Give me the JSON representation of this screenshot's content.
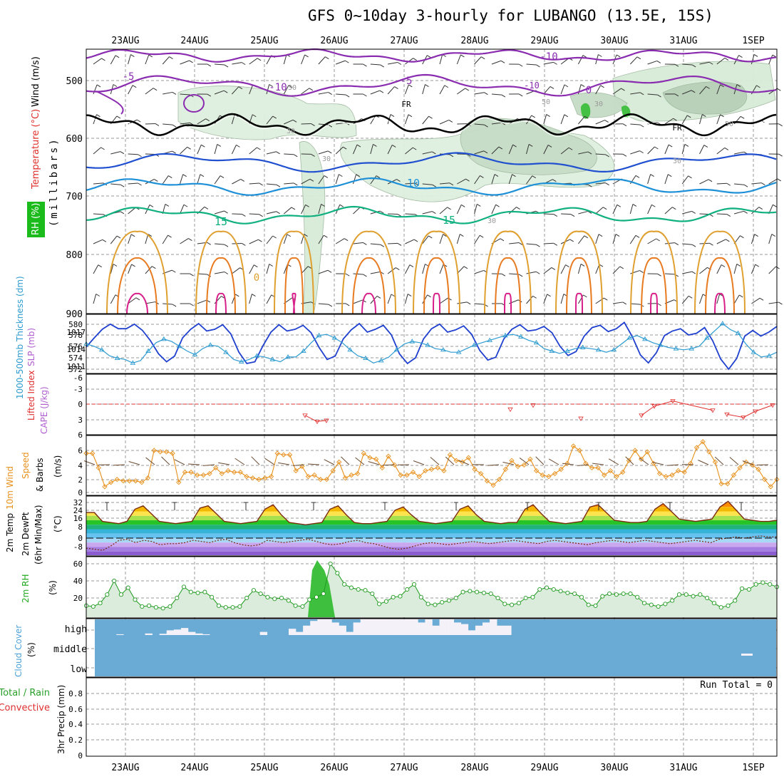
{
  "title": "GFS 0~10day 3-hourly for LUBANGO (13.5E, 15S)",
  "colors": {
    "temperature_label": "#e0302c",
    "rh_label": "#22aa22",
    "wind_label": "#000000",
    "thickness_line": "#2d9bd0",
    "slp_line": "#2040d0",
    "lifted_index": "#e03030",
    "cape": "#b060d0",
    "wind_speed": "#e8901a",
    "rh2m": "#1e9a1e",
    "cloud": "#6aabd6",
    "precip_total": "#2aa02a",
    "precip_conv": "#e03030"
  },
  "time_axis": {
    "dates": [
      "23AUG",
      "24AUG",
      "25AUG",
      "26AUG",
      "27AUG",
      "28AUG",
      "29AUG",
      "30AUG",
      "31AUG",
      "1SEP"
    ]
  },
  "panels": {
    "upper_air": {
      "ylabel_rh": "RH (%)",
      "ylabel_temperature": "Temperature (°C)",
      "ylabel_wind": "Wind (m/s)",
      "ylabel_pressure": "(millibars)",
      "yticks": [
        "500",
        "600",
        "700",
        "800",
        "900"
      ],
      "contour_labels": [
        "-10",
        "-5",
        "-10",
        "-5",
        "-10",
        "0",
        "FR",
        "FR",
        "10",
        "10",
        "15",
        "15",
        "0",
        "30",
        "30",
        "30",
        "30",
        "30",
        "50",
        "50",
        "30"
      ]
    },
    "thickness_slp": {
      "ylabel_thickness": "1000-500mb Thickness (dm)",
      "ylabel_slp": "SLP (mb)",
      "yticks_left": [
        "580",
        "578",
        "576",
        "574",
        "572"
      ],
      "yticks_right": [
        "1017",
        "1014",
        "1011"
      ]
    },
    "li_cape": {
      "ylabel_li": "Lifted Index",
      "ylabel_cape": "CAPE (J/kg)",
      "yticks": [
        "-6",
        "-3",
        "0",
        "3",
        "6"
      ]
    },
    "wind10m": {
      "ylabel_a": "10m Wind",
      "ylabel_b": "Speed",
      "ylabel_c": "& Barbs",
      "ylabel_units": "(m/s)",
      "yticks": [
        "6",
        "4",
        "2",
        "0"
      ]
    },
    "temp2m": {
      "ylabel_a": "2m Temp",
      "ylabel_b": "2m DewPt",
      "ylabel_c": "(6hr Min/Max)",
      "ylabel_units": "(°C)",
      "yticks": [
        "32",
        "24",
        "16",
        "8",
        "0",
        "-8"
      ]
    },
    "rh2m": {
      "ylabel": "2m RH",
      "ylabel_units": "(%)",
      "yticks": [
        "60",
        "40",
        "20"
      ]
    },
    "cloud": {
      "ylabel": "Cloud Cover",
      "ylabel_units": "(%)",
      "levels": [
        "high",
        "middle",
        "low"
      ]
    },
    "precip": {
      "ylabel_a": "Total / Rain",
      "ylabel_b": "Convective",
      "ylabel_c": "3hr Precip (mm)",
      "run_total": "Run Total = 0",
      "yticks": [
        "0.8",
        "0.6",
        "0.4",
        "0.2",
        "0"
      ]
    }
  },
  "chart_data": [
    {
      "type": "line",
      "title": "1000-500mb Thickness (dm) & SLP (mb)",
      "series": [
        {
          "name": "SLP (mb)",
          "values": [
            1014.4,
            1016,
            1017.5,
            1018.4,
            1017.6,
            1017.6,
            1018.4,
            1017.3,
            1015.5,
            1013.2,
            1011.8,
            1012.8,
            1016,
            1017.5,
            1018.5,
            1017.2,
            1017.5,
            1018.3,
            1016.7,
            1013.5,
            1011.5,
            1011.8,
            1014.6,
            1017,
            1018.3,
            1017.2,
            1017.5,
            1018.2,
            1016.9,
            1014.3,
            1012.2,
            1012.8,
            1015.8,
            1017.4,
            1018.5,
            1017,
            1017.5,
            1018.2,
            1016.5,
            1013.2,
            1011.5,
            1012.5,
            1015.8,
            1017.6,
            1018.4,
            1017,
            1017.4,
            1018.1,
            1016.6,
            1013.8,
            1012.1,
            1012.6,
            1015.8,
            1017.5,
            1018.3,
            1017.2,
            1017.4,
            1018,
            1016.9,
            1014.5,
            1012.9,
            1013.6,
            1016.3,
            1017.8,
            1018.2,
            1017.1,
            1017.6,
            1018.7,
            1016.2,
            1013,
            1011.6,
            1013.4,
            1016.4,
            1017.2,
            1017.6,
            1016.5,
            1016.8,
            1017.8,
            1015.5,
            1012.3,
            1010.5,
            1012.4,
            1016.3,
            1017.3,
            1016.3,
            1017,
            1018
          ]
        },
        {
          "name": "Thickness (dm)",
          "values": [
            576.6,
            576.2,
            575.6,
            574.6,
            574.2,
            574,
            573.4,
            573.8,
            575.4,
            576.8,
            577.4,
            577,
            576.2,
            575.4,
            574.8,
            575.8,
            576.4,
            576.2,
            575.2,
            574,
            573.6,
            574,
            574.6,
            574.4,
            574,
            573.6,
            574.4,
            574.4,
            575.4,
            576.8,
            578,
            578.2,
            577.6,
            576.8,
            575.6,
            574.6,
            574.2,
            573.4,
            573.8,
            574.4,
            575.6,
            576.6,
            577,
            576.8,
            576.4,
            575.8,
            575.6,
            575.2,
            575.2,
            575.8,
            576.4,
            576.8,
            577.2,
            577.6,
            578,
            578.2,
            577.8,
            577.2,
            576.8,
            575.8,
            575.4,
            575,
            575.4,
            575.8,
            576,
            575.8,
            575.6,
            575.2,
            575.6,
            576.6,
            577.6,
            578,
            577.4,
            576.8,
            576.4,
            576,
            575.8,
            575.6,
            575.8,
            576.2,
            577.6,
            578.8,
            580,
            579,
            578.4,
            576.6,
            575.2,
            574.4,
            574.6,
            575.2
          ]
        }
      ]
    },
    {
      "type": "line",
      "title": "Lifted Index",
      "series": [
        {
          "name": "Lifted Index",
          "values": [
            2.2,
            3.4,
            3.2,
            1,
            0.2,
            2.8,
            2.2,
            0.4,
            -0.6,
            1.2,
            2,
            2.6,
            1.4,
            0.2
          ]
        }
      ]
    },
    {
      "type": "line",
      "title": "10m Wind Speed (m/s)",
      "series": [
        {
          "name": "Speed",
          "values": [
            5.6,
            5.6,
            3.6,
            1,
            1.6,
            2,
            1.8,
            1.8,
            1.8,
            1.6,
            2.2,
            6,
            5.8,
            5.8,
            5.6,
            1.6,
            3,
            3,
            2.6,
            2.6,
            2.8,
            3.6,
            2.8,
            3.2,
            3,
            3,
            2.4,
            2.2,
            2,
            2.2,
            2.4,
            5.6,
            5.4,
            5.4,
            3.2,
            3.8,
            2.4,
            2.6,
            2,
            2,
            3.2,
            4.4,
            2.2,
            2.6,
            2.8,
            5.6,
            5,
            4.8,
            3.6,
            5.2,
            4,
            2.6,
            2.6,
            3,
            2.4,
            3.2,
            3.4,
            3.6,
            3.2,
            5.4,
            4.6,
            4.4,
            5,
            3.4,
            2.8,
            1.8,
            1.2,
            2,
            3.4,
            4.6,
            3.8,
            4,
            4.8,
            3.2,
            2.6,
            2.4,
            2.8,
            3.4,
            4.2,
            6.6,
            6,
            4.2,
            3.6,
            3.6,
            2.6,
            3.2,
            2.4,
            3,
            4.6,
            6,
            4.8,
            5.8,
            4.2,
            2.8,
            2.4,
            2.6,
            3.2,
            3,
            4.2,
            6.4,
            7.2,
            5.8,
            4.4,
            1.4,
            1.4,
            2.6,
            3.6,
            4.4,
            4,
            3.4,
            2,
            1,
            2
          ]
        }
      ]
    },
    {
      "type": "area",
      "title": "2m Temp / 2m DewPt (°C)",
      "series": [
        {
          "name": "2m Temp",
          "values": [
            23,
            23,
            15,
            14,
            13,
            15,
            26,
            29,
            22,
            15,
            14,
            13,
            14,
            15,
            27,
            29,
            22,
            15,
            14,
            13,
            14,
            15,
            26,
            30,
            21,
            14,
            13,
            12,
            13,
            14,
            26,
            29,
            21,
            14,
            13,
            13,
            14,
            15,
            25,
            28,
            21,
            15,
            14,
            13,
            14,
            15,
            26,
            29,
            21,
            15,
            14,
            13,
            14,
            14,
            26,
            30,
            22,
            15,
            14,
            13,
            14,
            15,
            28,
            30,
            23,
            16,
            15,
            14,
            14,
            15,
            26,
            31,
            24,
            17,
            16,
            15,
            16,
            17,
            28,
            33,
            25,
            17,
            16,
            15,
            15,
            16
          ]
        },
        {
          "name": "2m DewPt",
          "values": [
            -9,
            -10,
            -11,
            -7,
            -2,
            -1,
            -4,
            -2,
            -3,
            -6,
            -5,
            -5,
            -4,
            -2,
            -3,
            -4,
            -2,
            -1,
            -4,
            -6,
            -7,
            -6,
            -2,
            -3,
            -4,
            -3,
            -2,
            -1,
            -3,
            -5,
            -6,
            -5,
            -3,
            -2,
            -4,
            -5,
            -7,
            -9,
            -10,
            -9,
            -7,
            -5,
            -4,
            -5,
            -6,
            -5,
            -4,
            -3,
            -4,
            -5,
            -4,
            -3,
            -2,
            -3,
            -4,
            -5,
            -3,
            -2,
            -3,
            -4,
            -5,
            -6,
            -4,
            -3,
            -2,
            -3,
            -4,
            -3,
            -2,
            -3,
            -4,
            -5,
            -4,
            -3,
            -2,
            -3,
            -4,
            -1,
            0,
            1,
            0,
            1,
            2,
            1,
            1
          ]
        }
      ]
    },
    {
      "type": "area",
      "title": "2m RH (%)",
      "series": [
        {
          "name": "2m RH",
          "values": [
            11,
            10,
            14,
            24,
            40,
            24,
            32,
            18,
            10,
            11,
            9,
            8,
            10,
            20,
            33,
            27,
            26,
            27,
            21,
            11,
            9,
            9,
            10,
            20,
            29,
            25,
            21,
            19,
            20,
            17,
            11,
            10,
            18,
            21,
            25,
            60,
            49,
            36,
            32,
            30,
            29,
            25,
            13,
            16,
            21,
            22,
            30,
            36,
            21,
            13,
            12,
            15,
            17,
            20,
            27,
            28,
            27,
            26,
            25,
            20,
            13,
            12,
            14,
            20,
            21,
            30,
            32,
            30,
            28,
            26,
            25,
            21,
            12,
            11,
            22,
            25,
            24,
            25,
            25,
            21,
            14,
            12,
            10,
            13,
            17,
            24,
            24,
            22,
            24,
            20,
            14,
            9,
            11,
            17,
            31,
            30,
            36,
            38,
            36,
            33
          ]
        }
      ]
    },
    {
      "type": "bar",
      "title": "Cloud Cover (%)",
      "series": [
        {
          "name": "high",
          "values": [
            0,
            0,
            0,
            5,
            0,
            0,
            0,
            10,
            0,
            8,
            30,
            35,
            45,
            20,
            10,
            5,
            0,
            0,
            0,
            0,
            0,
            0,
            0,
            20,
            0,
            0,
            0,
            40,
            20,
            60,
            90,
            100,
            100,
            80,
            60,
            20,
            80,
            100,
            100,
            100,
            100,
            100,
            100,
            100,
            100,
            80,
            100,
            60,
            100,
            100,
            80,
            70,
            30,
            60,
            80,
            100,
            60,
            60,
            0,
            0,
            0,
            0,
            0,
            0,
            0,
            0,
            0,
            0,
            0,
            0,
            0,
            0,
            0,
            0,
            0,
            0,
            0,
            0,
            0,
            0,
            0,
            0,
            0,
            0,
            0,
            0,
            0,
            0,
            0,
            0,
            0,
            0,
            0,
            0,
            0
          ]
        },
        {
          "name": "middle",
          "values": [
            100,
            100,
            100,
            100,
            100,
            100,
            100,
            100,
            100,
            100,
            100,
            100,
            100,
            100,
            100,
            100,
            100,
            100,
            100,
            100,
            100,
            100,
            100,
            100,
            100,
            100,
            100,
            100,
            100,
            100,
            100,
            100,
            100,
            100,
            100,
            100,
            100,
            100,
            100,
            100,
            100,
            100,
            100,
            100,
            100,
            100,
            100,
            100,
            100,
            100,
            100,
            100,
            100,
            100,
            100,
            100,
            100,
            100,
            100,
            100,
            100,
            100,
            100,
            100,
            100,
            100,
            100,
            100,
            100,
            100,
            100,
            100,
            100,
            100,
            100,
            100,
            100,
            100,
            100,
            100,
            100,
            100,
            100,
            100,
            100,
            100,
            100,
            100,
            100,
            100,
            100,
            100,
            100,
            100,
            100
          ]
        },
        {
          "name": "low",
          "values": [
            100,
            100,
            100,
            100,
            100,
            100,
            100,
            100,
            100,
            100,
            100,
            100,
            100,
            100,
            100,
            100,
            100,
            100,
            100,
            100,
            100,
            100,
            100,
            100,
            100,
            100,
            100,
            100,
            100,
            100,
            100,
            100,
            100,
            100,
            100,
            100,
            100,
            100,
            100,
            100,
            100,
            100,
            100,
            100,
            100,
            100,
            100,
            100,
            100,
            100,
            100,
            100,
            100,
            100,
            100,
            100,
            100,
            100,
            100,
            100,
            100,
            100,
            100,
            100,
            100,
            100,
            100,
            100,
            100,
            100,
            100,
            100,
            100,
            100,
            100,
            100,
            100,
            100,
            100,
            100,
            100,
            100,
            100,
            100,
            100,
            100,
            100,
            100,
            100,
            100,
            100,
            100,
            100,
            100,
            100
          ]
        }
      ]
    },
    {
      "type": "bar",
      "title": "3hr Precip (mm)",
      "ylim": [
        0,
        1
      ],
      "series": [
        {
          "name": "Total / Rain",
          "values": [
            0,
            0,
            0,
            0,
            0,
            0,
            0,
            0,
            0,
            0
          ]
        }
      ]
    }
  ]
}
